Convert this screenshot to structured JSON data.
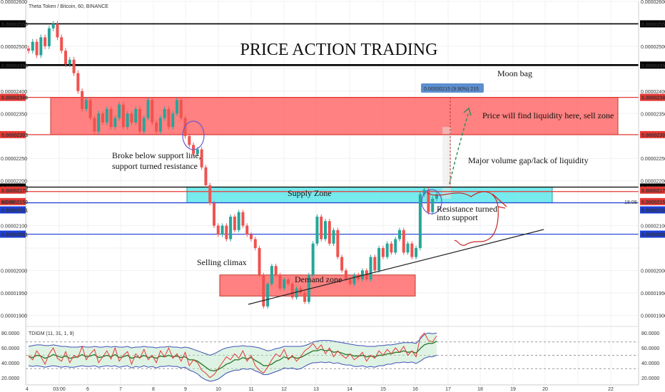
{
  "header": {
    "symbol_title": "Theta Token / Bitcoin, 60, BINANCE"
  },
  "chart_data": {
    "type": "candlestick",
    "title": "PRICE ACTION TRADING",
    "x_tick_labels": [
      "4",
      "03:00",
      "6",
      "7",
      "8",
      "9",
      "10",
      "11",
      "12",
      "13",
      "14",
      "15",
      "16",
      "17",
      "18",
      "19",
      "20",
      "22"
    ],
    "y_tick_labels": [
      "0.00002600",
      "0.00002500",
      "0.00002400",
      "0.00002350",
      "0.00002250",
      "0.00002200",
      "0.00002100",
      "0.00002000",
      "0.00001950",
      "0.00001900"
    ],
    "ylim": [
      1.88e-05,
      2.6e-05
    ],
    "price_lines": [
      {
        "label": "0.00002550",
        "value": 2.55e-05,
        "color": "#000000"
      },
      {
        "label": "0.00002458",
        "value": 2.458e-05,
        "color": "#000000"
      },
      {
        "label": "0.00002386",
        "value": 2.386e-05,
        "color": "#e53935"
      },
      {
        "label": "0.00002303",
        "value": 2.303e-05,
        "color": "#e53935"
      },
      {
        "label": "0.00002186",
        "value": 2.186e-05,
        "color": "#000000"
      },
      {
        "label": "0.00002176",
        "value": 2.176e-05,
        "color": "#e53935"
      },
      {
        "label": "0.00002151",
        "value": 2.151e-05,
        "color": "#1e3fd6"
      },
      {
        "label": "0.00002081",
        "value": 2.081e-05,
        "color": "#1e3fd6"
      }
    ],
    "right_price_badges": [
      "0.00002550",
      "0.00002458",
      "0.00002386",
      "0.00002303",
      "0.00002186",
      "0.00002176",
      "0.00002150",
      "0.00002151",
      "0.00002081"
    ],
    "left_price_badges": [
      "0.00002550",
      "0.00002458",
      "0.00002386",
      "0.00002303",
      "0.00002186",
      "0.00002176",
      "0.00002150",
      "0.00002151",
      "0.00002081"
    ],
    "countdown_label": "18:08",
    "zones": [
      {
        "name": "Sell zone",
        "color": "#ff6b6b",
        "y_top": 2.386e-05,
        "y_bottom": 2.303e-05
      },
      {
        "name": "Supply Zone",
        "color": "#5ee6ea",
        "y_top": 2.186e-05,
        "y_bottom": 2.151e-05
      },
      {
        "name": "Demand zone",
        "color": "#ff6b6b",
        "y_top": 1.99e-05,
        "y_bottom": 1.943e-05
      }
    ],
    "measure_label": "0.00000215 (9.90%) 215",
    "annotations": [
      "PRICE ACTION TRADING",
      "Moon bag",
      "Price will find liquidity here, sell zone",
      "Broke below support line,",
      "support turned resistance",
      "Major volume gap/lack of liquidity",
      "Supply Zone",
      "Resistance turned",
      "into support",
      "Selling climax",
      "Demand zone"
    ],
    "candles_close": [
      2.49e-05,
      2.51e-05,
      2.48e-05,
      2.52e-05,
      2.5e-05,
      2.54e-05,
      2.55e-05,
      2.52e-05,
      2.49e-05,
      2.46e-05,
      2.47e-05,
      2.44e-05,
      2.4e-05,
      2.36e-05,
      2.38e-05,
      2.34e-05,
      2.31e-05,
      2.35e-05,
      2.33e-05,
      2.36e-05,
      2.32e-05,
      2.34e-05,
      2.37e-05,
      2.32e-05,
      2.35e-05,
      2.33e-05,
      2.36e-05,
      2.31e-05,
      2.34e-05,
      2.38e-05,
      2.33e-05,
      2.31e-05,
      2.34e-05,
      2.36e-05,
      2.32e-05,
      2.35e-05,
      2.38e-05,
      2.34e-05,
      2.3e-05,
      2.28e-05,
      2.26e-05,
      2.27e-05,
      2.23e-05,
      2.19e-05,
      2.15e-05,
      2.1e-05,
      2.08e-05,
      2.1e-05,
      2.07e-05,
      2.12e-05,
      2.09e-05,
      2.13e-05,
      2.1e-05,
      2.08e-05,
      2.07e-05,
      2.05e-05,
      1.99e-05,
      1.92e-05,
      1.97e-05,
      2.01e-05,
      1.99e-05,
      1.96e-05,
      1.98e-05,
      1.97e-05,
      1.94e-05,
      1.96e-05,
      1.95e-05,
      1.93e-05,
      1.99e-05,
      2.06e-05,
      2.12e-05,
      2.07e-05,
      2.11e-05,
      2.06e-05,
      2.09e-05,
      2.03e-05,
      2e-05,
      1.98e-05,
      1.97e-05,
      1.99e-05,
      1.98e-05,
      2e-05,
      1.98e-05,
      2.03e-05,
      2e-05,
      2.05e-05,
      2.03e-05,
      2.06e-05,
      2.04e-05,
      2.07e-05,
      2.09e-05,
      2.04e-05,
      2.06e-05,
      2.03e-05,
      2.05e-05,
      2.17e-05,
      2.18e-05,
      2.13e-05,
      2.16e-05,
      2.17e-05
    ],
    "oscillator": {
      "label": "TDIGM (11, 31, 1, 9)",
      "y_tick_labels": [
        "80.0000",
        "60.0000",
        "40.0000",
        "20.0000"
      ],
      "ylim": [
        15,
        85
      ],
      "levels": [
        68,
        50,
        32
      ],
      "rsi": [
        50,
        44,
        56,
        48,
        38,
        52,
        60,
        46,
        42,
        55,
        40,
        50,
        47,
        62,
        44,
        52,
        58,
        40,
        48,
        56,
        45,
        60,
        42,
        50,
        55,
        38,
        52,
        46,
        58,
        44,
        50,
        40,
        56,
        48,
        60,
        46,
        52,
        42,
        54,
        36,
        44,
        40,
        30,
        26,
        20,
        24,
        32,
        40,
        48,
        44,
        52,
        46,
        56,
        42,
        50,
        36,
        30,
        26,
        34,
        44,
        52,
        48,
        58,
        44,
        50,
        42,
        48,
        56,
        60,
        66,
        58,
        64,
        52,
        60,
        48,
        56,
        50,
        46,
        52,
        44,
        48,
        54,
        42,
        50,
        46,
        56,
        50,
        58,
        52,
        60,
        54,
        62,
        50,
        56,
        48,
        74,
        80,
        70,
        68,
        76
      ],
      "signal": [
        48,
        47,
        50,
        49,
        46,
        48,
        51,
        49,
        47,
        49,
        46,
        47,
        48,
        51,
        48,
        49,
        51,
        47,
        48,
        50,
        48,
        51,
        47,
        48,
        50,
        46,
        48,
        47,
        50,
        47,
        48,
        46,
        49,
        48,
        50,
        48,
        49,
        47,
        48,
        44,
        44,
        42,
        38,
        34,
        30,
        29,
        31,
        34,
        38,
        40,
        44,
        44,
        47,
        45,
        47,
        43,
        40,
        36,
        36,
        38,
        42,
        44,
        48,
        46,
        48,
        46,
        47,
        50,
        53,
        56,
        56,
        58,
        56,
        57,
        54,
        55,
        53,
        51,
        51,
        49,
        49,
        50,
        48,
        49,
        48,
        50,
        50,
        52,
        52,
        54,
        54,
        56,
        54,
        55,
        53,
        59,
        64,
        66,
        66,
        69
      ],
      "band_upper": [
        62,
        63,
        64,
        64,
        63,
        63,
        64,
        63,
        62,
        62,
        61,
        61,
        61,
        62,
        61,
        61,
        62,
        61,
        61,
        62,
        61,
        62,
        61,
        61,
        62,
        60,
        61,
        61,
        62,
        61,
        61,
        60,
        61,
        61,
        62,
        61,
        61,
        60,
        61,
        60,
        58,
        56,
        54,
        52,
        50,
        52,
        55,
        58,
        60,
        61,
        62,
        62,
        63,
        62,
        62,
        61,
        60,
        58,
        56,
        57,
        59,
        60,
        62,
        62,
        62,
        62,
        62,
        63,
        65,
        68,
        69,
        70,
        70,
        70,
        69,
        68,
        67,
        66,
        65,
        64,
        63,
        63,
        62,
        62,
        62,
        63,
        63,
        64,
        64,
        65,
        66,
        67,
        67,
        67,
        66,
        72,
        78,
        80,
        79,
        80
      ],
      "band_lower": [
        36,
        35,
        36,
        35,
        34,
        35,
        36,
        35,
        34,
        35,
        34,
        34,
        35,
        36,
        35,
        35,
        36,
        34,
        35,
        36,
        35,
        36,
        34,
        35,
        36,
        33,
        35,
        34,
        36,
        34,
        35,
        33,
        35,
        35,
        36,
        35,
        35,
        33,
        34,
        30,
        28,
        25,
        20,
        17,
        15,
        16,
        18,
        22,
        26,
        28,
        30,
        30,
        32,
        31,
        32,
        29,
        27,
        24,
        24,
        26,
        28,
        30,
        33,
        32,
        33,
        31,
        32,
        35,
        38,
        40,
        40,
        41,
        40,
        41,
        39,
        40,
        38,
        37,
        37,
        35,
        35,
        36,
        34,
        35,
        34,
        36,
        36,
        38,
        38,
        40,
        40,
        41,
        40,
        41,
        39,
        42,
        46,
        48,
        48,
        50
      ]
    }
  }
}
